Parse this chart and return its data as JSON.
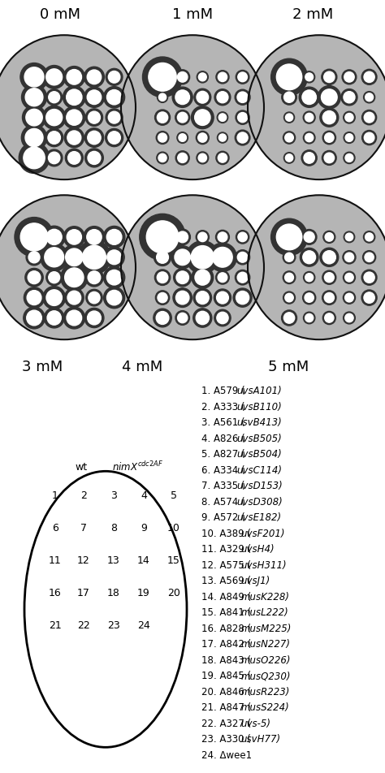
{
  "top_labels": [
    "0 mM",
    "1 mM",
    "2 mM"
  ],
  "bottom_labels": [
    "3 mM",
    "4 mM",
    "5 mM"
  ],
  "photo_bg": "#3a3a3a",
  "dish_bg": "#909090",
  "bg_color": "#ffffff",
  "legend_items": [
    {
      "num": "1.",
      "strain": "A579",
      "gene": "uvsA101"
    },
    {
      "num": "2.",
      "strain": "A333",
      "gene": "uvsB110"
    },
    {
      "num": "3.",
      "strain": "A561",
      "gene": "usvB413"
    },
    {
      "num": "4.",
      "strain": "A826",
      "gene": "uvsB505"
    },
    {
      "num": "5.",
      "strain": "A827",
      "gene": "uvsB504"
    },
    {
      "num": "6.",
      "strain": "A334",
      "gene": "uvsC114"
    },
    {
      "num": "7.",
      "strain": "A335",
      "gene": "uvsD153"
    },
    {
      "num": "8.",
      "strain": "A574",
      "gene": "uvsD308"
    },
    {
      "num": "9.",
      "strain": "A572",
      "gene": "uvsE182"
    },
    {
      "num": "10.",
      "strain": "A389",
      "gene": "uvsF201"
    },
    {
      "num": "11.",
      "strain": "A329",
      "gene": "uvsH4"
    },
    {
      "num": "12.",
      "strain": "A575",
      "gene": "uvsH311"
    },
    {
      "num": "13.",
      "strain": "A569",
      "gene": "uvsJ1"
    },
    {
      "num": "14.",
      "strain": "A849",
      "gene": "musK228"
    },
    {
      "num": "15.",
      "strain": "A841",
      "gene": "musL222"
    },
    {
      "num": "16.",
      "strain": "A828",
      "gene": "musM225"
    },
    {
      "num": "17.",
      "strain": "A842",
      "gene": "musN227"
    },
    {
      "num": "18.",
      "strain": "A843",
      "gene": "musO226"
    },
    {
      "num": "19.",
      "strain": "A845",
      "gene": "musQ230"
    },
    {
      "num": "20.",
      "strain": "A846",
      "gene": "musR223"
    },
    {
      "num": "21.",
      "strain": "A847",
      "gene": "musS224"
    },
    {
      "num": "22.",
      "strain": "A327",
      "gene": "uvs-5"
    },
    {
      "num": "23.",
      "strain": "A330",
      "gene": "usvH77"
    },
    {
      "num": "24.",
      "strain": "Δwee1",
      "gene": null
    }
  ],
  "plate_rows": [
    [
      1,
      2,
      3,
      4,
      5
    ],
    [
      6,
      7,
      8,
      9,
      10
    ],
    [
      11,
      12,
      13,
      14,
      15
    ],
    [
      16,
      17,
      18,
      19,
      20
    ],
    [
      21,
      22,
      23,
      24
    ]
  ],
  "colony_data": {
    "dish0": {
      "sizes": [
        18,
        12,
        12,
        12,
        12,
        18,
        12,
        12,
        12,
        12,
        18,
        12,
        12,
        12,
        12,
        18,
        12,
        12,
        12,
        12,
        18,
        12,
        12,
        12,
        12
      ],
      "bright": 0.85
    },
    "dish1": {
      "sizes": [
        25,
        8,
        8,
        8,
        8,
        8,
        12,
        12,
        12,
        8,
        8,
        8,
        15,
        8,
        8,
        8,
        8,
        8,
        8,
        8,
        8,
        8,
        8,
        8,
        8
      ],
      "bright": 0.95
    },
    "dish2": {
      "sizes": [
        22,
        8,
        8,
        8,
        8,
        8,
        12,
        12,
        12,
        8,
        8,
        8,
        12,
        8,
        8,
        8,
        8,
        8,
        8,
        8,
        8,
        8,
        8,
        8,
        8
      ],
      "bright": 0.85
    },
    "dish3": {
      "sizes": [
        30,
        12,
        12,
        12,
        12,
        12,
        18,
        18,
        18,
        12,
        12,
        12,
        18,
        12,
        12,
        12,
        12,
        12,
        12,
        12,
        12,
        12,
        12,
        12,
        12
      ],
      "bright": 0.9
    },
    "dish4": {
      "sizes": [
        28,
        10,
        10,
        10,
        10,
        10,
        15,
        20,
        15,
        10,
        10,
        10,
        15,
        10,
        10,
        10,
        10,
        10,
        10,
        10,
        10,
        10,
        10,
        10,
        10
      ],
      "bright": 0.9
    },
    "dish5": {
      "sizes": [
        20,
        8,
        8,
        8,
        8,
        8,
        10,
        10,
        10,
        8,
        8,
        8,
        10,
        8,
        8,
        8,
        8,
        8,
        8,
        8,
        8,
        8,
        8,
        8,
        8
      ],
      "bright": 0.8
    }
  }
}
